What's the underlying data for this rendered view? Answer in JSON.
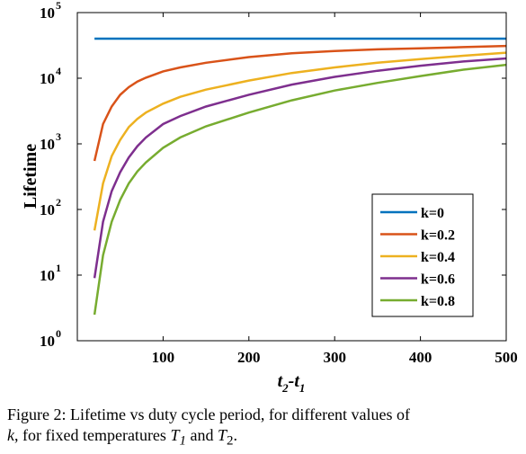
{
  "caption": {
    "line1": "Figure 2: Lifetime vs duty cycle period, for different values of",
    "k": "k",
    "mid": ", for fixed temperatures ",
    "t1_base": "T",
    "t1_sub": "1",
    "and": " and ",
    "t2_base": "T",
    "t2_sub": "2",
    "end": "."
  },
  "chart_data": {
    "type": "line",
    "ylabel": "Lifetime",
    "xlabel": {
      "a": "t",
      "a_sub": "2",
      "dash": "-",
      "b": "t",
      "b_sub": "1"
    },
    "xlim": [
      0,
      500
    ],
    "ylim_log10": [
      0,
      5
    ],
    "yscale": "log",
    "xticks": [
      100,
      200,
      300,
      400,
      500
    ],
    "yticks": [
      {
        "base": "10",
        "exp": "0"
      },
      {
        "base": "10",
        "exp": "1"
      },
      {
        "base": "10",
        "exp": "2"
      },
      {
        "base": "10",
        "exp": "3"
      },
      {
        "base": "10",
        "exp": "4"
      },
      {
        "base": "10",
        "exp": "5"
      }
    ],
    "legend_position": "lower-right",
    "grid": false,
    "x": [
      20,
      30,
      40,
      50,
      60,
      70,
      80,
      100,
      120,
      150,
      200,
      250,
      300,
      350,
      400,
      450,
      500
    ],
    "series": [
      {
        "name": "k=0",
        "color": "#0072BD",
        "values": [
          40000,
          40000,
          40000,
          40000,
          40000,
          40000,
          40000,
          40000,
          40000,
          40000,
          40000,
          40000,
          40000,
          40000,
          40000,
          40000,
          40000
        ]
      },
      {
        "name": "k=0.2",
        "color": "#D95319",
        "values": [
          550,
          2000,
          3700,
          5600,
          7300,
          8900,
          10200,
          12700,
          14600,
          17200,
          21000,
          24000,
          26000,
          27500,
          28500,
          29800,
          31000
        ]
      },
      {
        "name": "k=0.4",
        "color": "#EDB120",
        "values": [
          48,
          250,
          650,
          1150,
          1800,
          2400,
          3000,
          4100,
          5200,
          6700,
          9200,
          12000,
          14600,
          17200,
          19500,
          22000,
          24500
        ]
      },
      {
        "name": "k=0.6",
        "color": "#7E2F8E",
        "values": [
          9,
          65,
          190,
          370,
          620,
          920,
          1250,
          2000,
          2650,
          3700,
          5600,
          8000,
          10500,
          13000,
          15500,
          18000,
          20000
        ]
      },
      {
        "name": "k=0.8",
        "color": "#77AC30",
        "values": [
          2.5,
          20,
          65,
          140,
          250,
          380,
          520,
          870,
          1250,
          1850,
          3000,
          4600,
          6500,
          8500,
          10800,
          13500,
          16000
        ]
      }
    ]
  }
}
